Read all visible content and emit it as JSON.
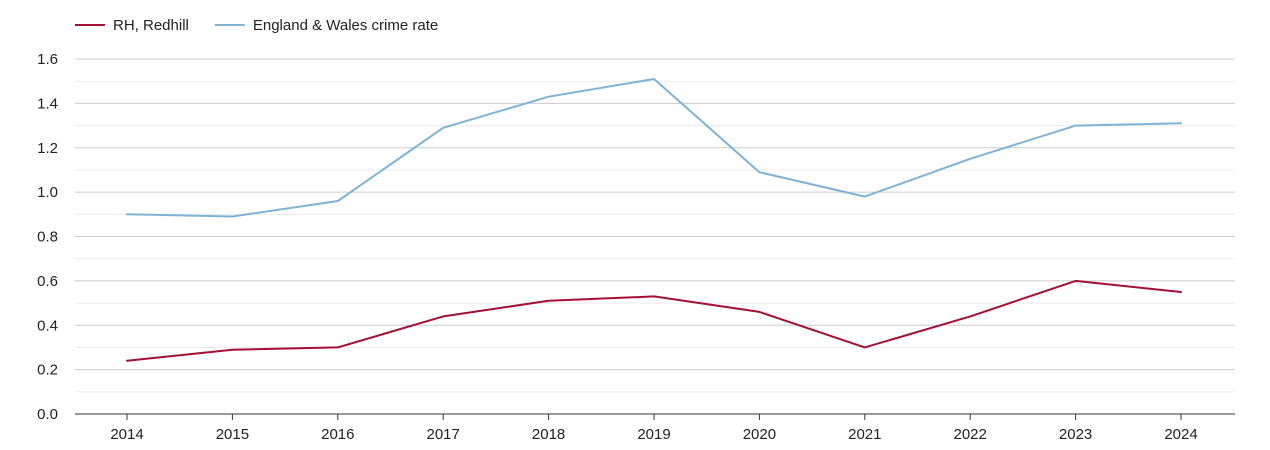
{
  "chart_data": {
    "type": "line",
    "title": "",
    "xlabel": "",
    "ylabel": "",
    "x": [
      2014,
      2015,
      2016,
      2017,
      2018,
      2019,
      2020,
      2021,
      2022,
      2023,
      2024
    ],
    "ylim": [
      0,
      1.6
    ],
    "yticks": [
      "0.0",
      "0.2",
      "0.4",
      "0.6",
      "0.8",
      "1.0",
      "1.2",
      "1.4",
      "1.6"
    ],
    "grid": true,
    "legend_position": "top-left",
    "series": [
      {
        "name": "RH, Redhill",
        "color": "#a50f36",
        "values": [
          0.24,
          0.29,
          0.3,
          0.44,
          0.51,
          0.53,
          0.46,
          0.3,
          0.44,
          0.6,
          0.55
        ]
      },
      {
        "name": "England & Wales crime rate",
        "color": "#7eb3d6",
        "values": [
          0.9,
          0.89,
          0.96,
          1.29,
          1.43,
          1.51,
          1.09,
          0.98,
          1.15,
          1.3,
          1.31
        ]
      }
    ]
  }
}
